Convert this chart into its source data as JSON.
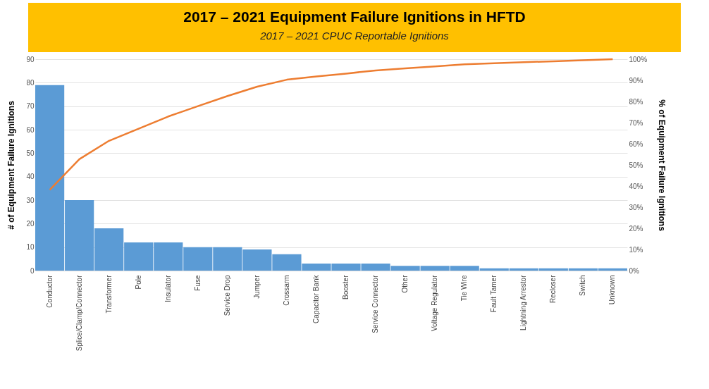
{
  "chart_data": {
    "type": "bar",
    "title": "2017 – 2021 Equipment Failure Ignitions in HFTD",
    "subtitle": "2017 – 2021 CPUC Reportable Ignitions",
    "ylabel": "# of Equipment Failure Ignitions",
    "y2label": "% of Equipment Failure Ignitions",
    "categories": [
      "Conductor",
      "Splice/Clamp/Connector",
      "Transformer",
      "Pole",
      "Insulator",
      "Fuse",
      "Service Drop",
      "Jumper",
      "Crossarm",
      "Capacitor Bank",
      "Booster",
      "Service Connector",
      "Other",
      "Voltage Regulator",
      "Tie Wire",
      "Fault Tamer",
      "Lightning Arrestor",
      "Recloser",
      "Switch",
      "Unknown"
    ],
    "series": [
      {
        "color": "#5b9bd5",
        "values": [
          79,
          30,
          18,
          12,
          12,
          10,
          10,
          9,
          7,
          3,
          3,
          3,
          2,
          2,
          2,
          1,
          1,
          1,
          1,
          1
        ]
      },
      {
        "type": "line",
        "axis": "y2",
        "color": "#ed7d31",
        "values": [
          38.2,
          52.7,
          61.4,
          67.1,
          72.9,
          77.8,
          82.6,
          87.0,
          90.3,
          91.8,
          93.2,
          94.7,
          95.7,
          96.6,
          97.6,
          98.1,
          98.6,
          99.0,
          99.5,
          100
        ]
      }
    ],
    "ylim": [
      0,
      90
    ],
    "yticks": [
      0,
      10,
      20,
      30,
      40,
      50,
      60,
      70,
      80,
      90
    ],
    "y2lim": [
      0,
      100
    ],
    "y2ticks": [
      {
        "value": 0,
        "label": "0%"
      },
      {
        "value": 10,
        "label": "10%"
      },
      {
        "value": 20,
        "label": "20%"
      },
      {
        "value": 30,
        "label": "30%"
      },
      {
        "value": 40,
        "label": "40%"
      },
      {
        "value": 50,
        "label": "50%"
      },
      {
        "value": 60,
        "label": "60%"
      },
      {
        "value": 70,
        "label": "70%"
      },
      {
        "value": 80,
        "label": "80%"
      },
      {
        "value": 90,
        "label": "90%"
      },
      {
        "value": 100,
        "label": "100%"
      }
    ],
    "grid": "y",
    "legend": false,
    "marker": "none",
    "line_style": "solid"
  }
}
